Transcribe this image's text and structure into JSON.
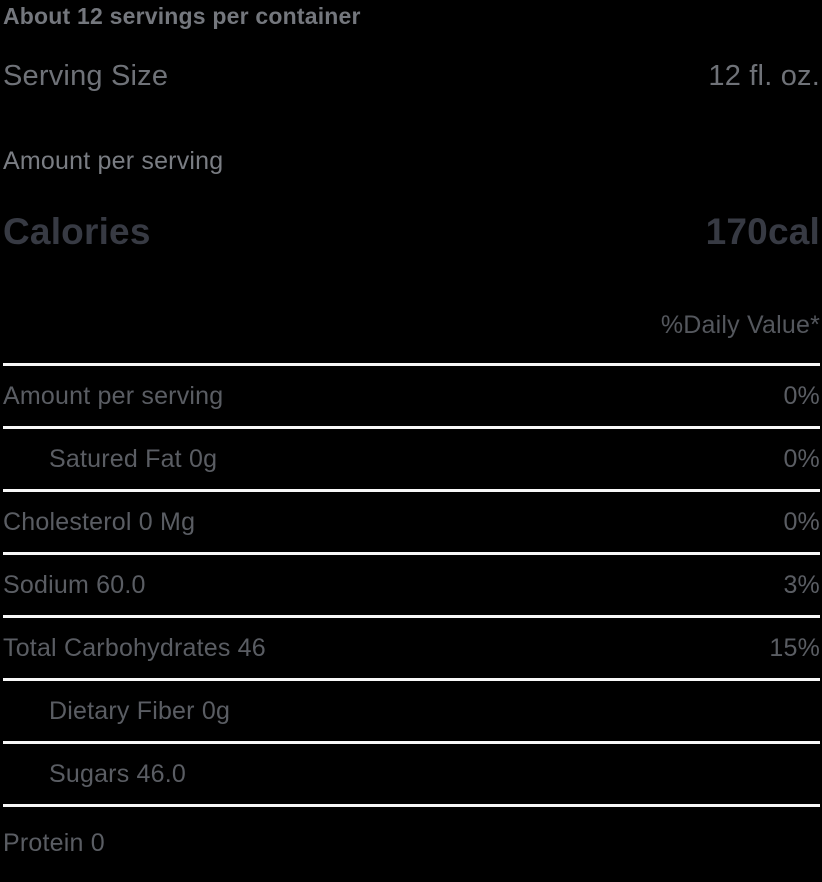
{
  "label": {
    "servings_per_container": "About 12 servings per container",
    "serving_size": {
      "label": "Serving Size",
      "value": "12 fl. oz."
    },
    "amount_per_serving_heading": "Amount per serving",
    "calories": {
      "label": "Calories",
      "value": "170cal"
    },
    "daily_value_header": "%Daily Value*",
    "rows": [
      {
        "name": "Amount per serving",
        "value": "0%",
        "indent": false
      },
      {
        "name": "Satured Fat 0g",
        "value": "0%",
        "indent": true
      },
      {
        "name": "Cholesterol 0 Mg",
        "value": "0%",
        "indent": false
      },
      {
        "name": "Sodium 60.0",
        "value": "3%",
        "indent": false
      },
      {
        "name": "Total Carbohydrates 46",
        "value": "15%",
        "indent": false
      },
      {
        "name": "Dietary Fiber 0g",
        "value": "",
        "indent": true
      },
      {
        "name": "Sugars 46.0",
        "value": "",
        "indent": true
      },
      {
        "name": "Protein 0",
        "value": "",
        "indent": false
      }
    ],
    "colors": {
      "background": "#000000",
      "divider": "#f7f7f7",
      "text_muted": "#74777d",
      "text_serving": "#6f7278",
      "text_strong": "#373a43",
      "text_row": "#5a5d63"
    }
  }
}
